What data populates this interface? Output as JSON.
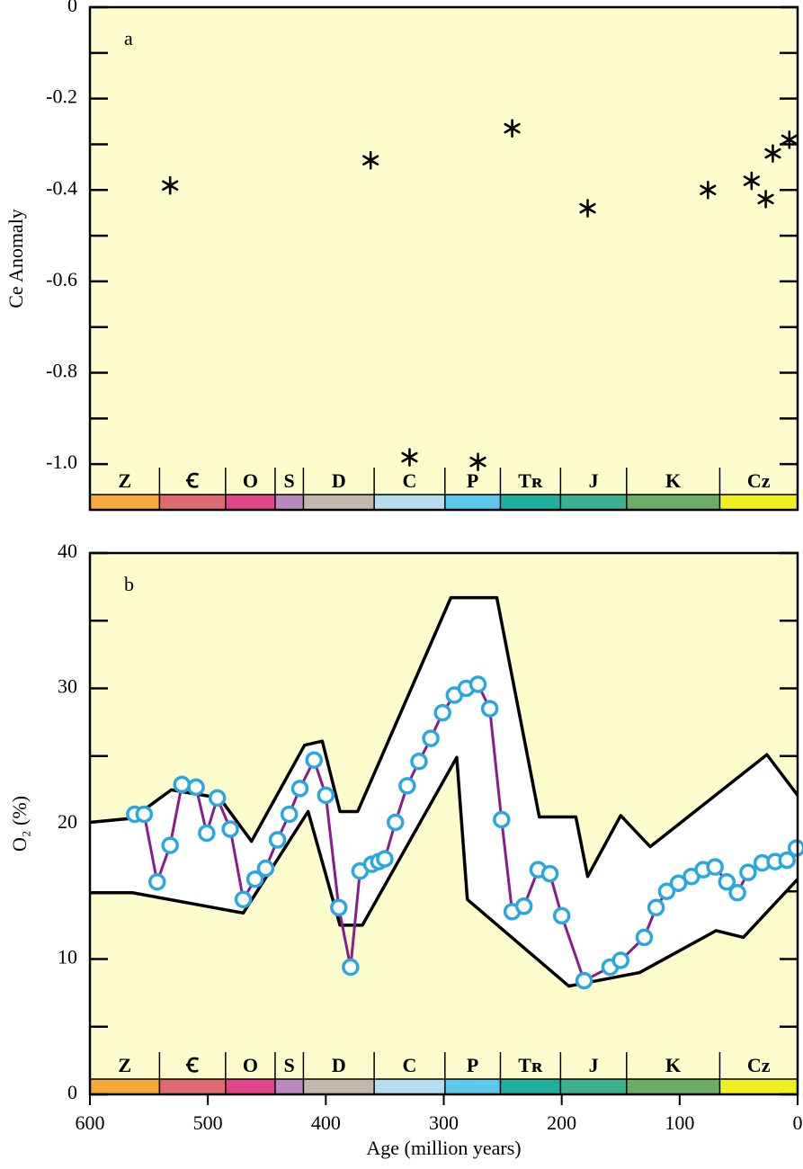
{
  "chart_data": [
    {
      "type": "scatter",
      "label": "a",
      "ylabel": "Ce Anomaly",
      "xlim": [
        600,
        0
      ],
      "ylim": [
        -1.1,
        0
      ],
      "yticks": [
        0,
        -0.2,
        -0.4,
        -0.6,
        -0.8,
        {
          "value": -1,
          "label": "-1.0"
        }
      ],
      "yticks_minor": [
        -0.1,
        -0.3,
        -0.5,
        -0.7,
        -0.9
      ],
      "marker": "asterisk",
      "color": "#000000",
      "series": [
        {
          "x": [
            532,
            362,
            242,
            178,
            76,
            39,
            27,
            21,
            7,
            329,
            271
          ],
          "values": [
            -0.39,
            -0.335,
            -0.265,
            -0.44,
            -0.4,
            -0.38,
            -0.42,
            -0.32,
            -0.29,
            -0.985,
            -0.995
          ]
        }
      ]
    },
    {
      "type": "line",
      "label": "b",
      "ylabel": "O₂ (%)",
      "xlabel": "Age (million years)",
      "xlim": [
        600,
        0
      ],
      "ylim": [
        0,
        40
      ],
      "yticks": [
        0,
        10,
        20,
        30,
        40
      ],
      "yticks_minor": [
        5,
        15,
        25,
        35
      ],
      "xticks": [
        600,
        500,
        400,
        300,
        200,
        100,
        0
      ],
      "fill": "#ffffff",
      "series": [
        {
          "color": "#000000",
          "x": [
            600,
            564,
            531,
            490,
            463,
            418,
            403,
            388,
            373,
            294,
            255,
            219,
            188,
            178,
            150,
            125,
            26,
            0
          ],
          "values": [
            20.1,
            20.4,
            22.5,
            21.9,
            18.7,
            25.8,
            26.1,
            20.9,
            20.9,
            36.7,
            36.7,
            20.5,
            20.5,
            16.1,
            20.6,
            18.3,
            25.1,
            22.1
          ]
        },
        {
          "color": "#000000",
          "x": [
            600,
            564,
            470,
            415,
            388,
            369,
            289,
            280,
            194,
            134,
            69,
            46,
            0
          ],
          "values": [
            14.9,
            14.9,
            13.4,
            20.9,
            12.5,
            12.5,
            24.9,
            14.4,
            8.0,
            9.0,
            12.1,
            11.6,
            15.9
          ]
        },
        {
          "color": "#8b1a8b",
          "marker": "circle",
          "marker_color": "#29a8e0",
          "x": [
            562,
            554,
            543,
            532,
            522,
            510,
            501,
            492,
            481,
            470,
            460,
            451,
            441,
            431,
            422,
            410,
            400,
            389,
            379,
            371,
            361,
            355,
            350,
            341,
            331,
            321,
            311,
            301,
            291,
            281,
            271,
            261,
            251,
            242,
            232,
            220,
            210,
            200,
            181,
            159,
            150,
            130,
            120,
            111,
            101,
            90,
            80,
            70,
            60,
            51,
            42,
            30,
            19,
            9,
            1
          ],
          "values": [
            20.7,
            20.7,
            15.7,
            18.4,
            22.9,
            22.7,
            19.3,
            21.9,
            19.6,
            14.4,
            15.9,
            16.7,
            18.8,
            20.7,
            22.6,
            24.7,
            22.1,
            13.8,
            9.4,
            16.5,
            17.0,
            17.2,
            17.4,
            20.1,
            22.8,
            24.6,
            26.3,
            28.2,
            29.5,
            30.0,
            30.3,
            28.5,
            20.3,
            13.5,
            13.9,
            16.6,
            16.3,
            13.2,
            8.4,
            9.4,
            9.9,
            11.6,
            13.8,
            15.0,
            15.6,
            16.1,
            16.6,
            16.8,
            15.7,
            14.9,
            16.4,
            17.1,
            17.2,
            17.3,
            18.2
          ]
        }
      ]
    }
  ],
  "periods": {
    "labels": [
      "Z",
      "Ꞓ",
      "O",
      "S",
      "D",
      "C",
      "P",
      "Tʀ",
      "J",
      "K",
      "Cz"
    ],
    "boundaries": [
      600,
      541,
      485,
      443,
      419,
      359,
      299,
      252,
      201,
      145,
      66,
      0
    ],
    "colors": [
      "#f4a93a",
      "#e06a72",
      "#e0458a",
      "#b98ac0",
      "#c4b8ac",
      "#b4def0",
      "#5cc8ec",
      "#20b0a0",
      "#3cb090",
      "#6aac68",
      "#f0f020"
    ]
  },
  "background": "#fcfccd"
}
